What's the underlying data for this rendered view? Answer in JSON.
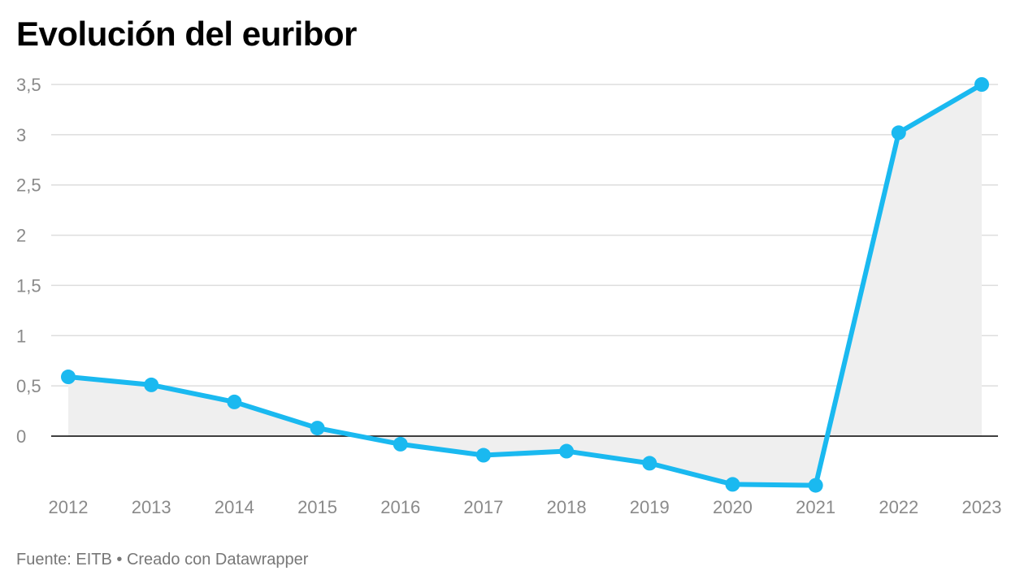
{
  "chart_data": {
    "type": "line",
    "title": "Evolución del euribor",
    "x": [
      "2012",
      "2013",
      "2014",
      "2015",
      "2016",
      "2017",
      "2018",
      "2019",
      "2020",
      "2021",
      "2022",
      "2023"
    ],
    "series": [
      {
        "values": [
          0.59,
          0.51,
          0.34,
          0.08,
          -0.08,
          -0.19,
          -0.15,
          -0.27,
          -0.48,
          -0.49,
          3.02,
          3.5
        ]
      }
    ],
    "y_ticks": [
      {
        "value": 3.5,
        "label": "3,5"
      },
      {
        "value": 3,
        "label": "3"
      },
      {
        "value": 2.5,
        "label": "2,5"
      },
      {
        "value": 2,
        "label": "2"
      },
      {
        "value": 1.5,
        "label": "1,5"
      },
      {
        "value": 1,
        "label": "1"
      },
      {
        "value": 0.5,
        "label": "0,5"
      },
      {
        "value": 0,
        "label": "0"
      }
    ],
    "ylim": [
      -0.5,
      3.5
    ],
    "grid": true,
    "legend": "none",
    "colors": {
      "line": "#1ab9f0",
      "area": "#efefef",
      "grid": "#dddddd",
      "zero_line": "#000000"
    }
  },
  "footer": "Fuente: EITB • Creado con Datawrapper"
}
